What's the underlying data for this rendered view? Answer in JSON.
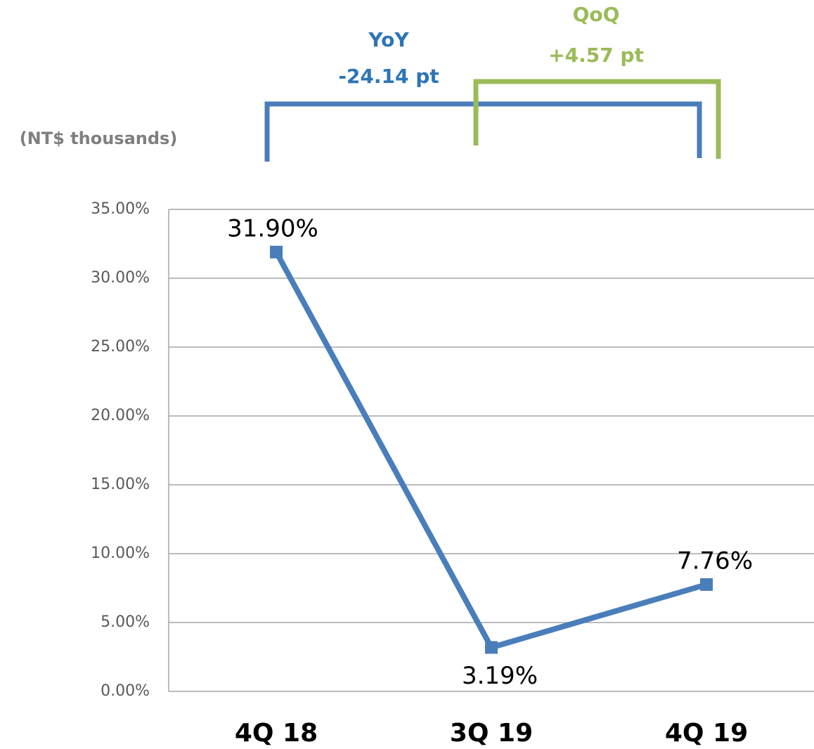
{
  "chart_data": {
    "type": "line",
    "annotations": {
      "unit": "(NT$ thousands)",
      "yoy_title": "YoY",
      "yoy_value": "-24.14 pt",
      "qoq_title": "QoQ",
      "qoq_value": "+4.57 pt"
    },
    "categories": [
      "4Q 18",
      "3Q 19",
      "4Q 19"
    ],
    "series": [
      {
        "color": "#4a7ebb",
        "values": [
          31.9,
          3.19,
          7.76
        ],
        "value_labels": [
          "31.90%",
          "3.19%",
          "7.76%"
        ]
      }
    ],
    "ylim": [
      0,
      35
    ],
    "yticks": [
      {
        "value": 0,
        "label": "0.00%"
      },
      {
        "value": 5,
        "label": "5.00%"
      },
      {
        "value": 10,
        "label": "10.00%"
      },
      {
        "value": 15,
        "label": "15.00%"
      },
      {
        "value": 20,
        "label": "20.00%"
      },
      {
        "value": 25,
        "label": "25.00%"
      },
      {
        "value": 30,
        "label": "30.00%"
      },
      {
        "value": 35,
        "label": "35.00%"
      }
    ],
    "grid": true
  }
}
